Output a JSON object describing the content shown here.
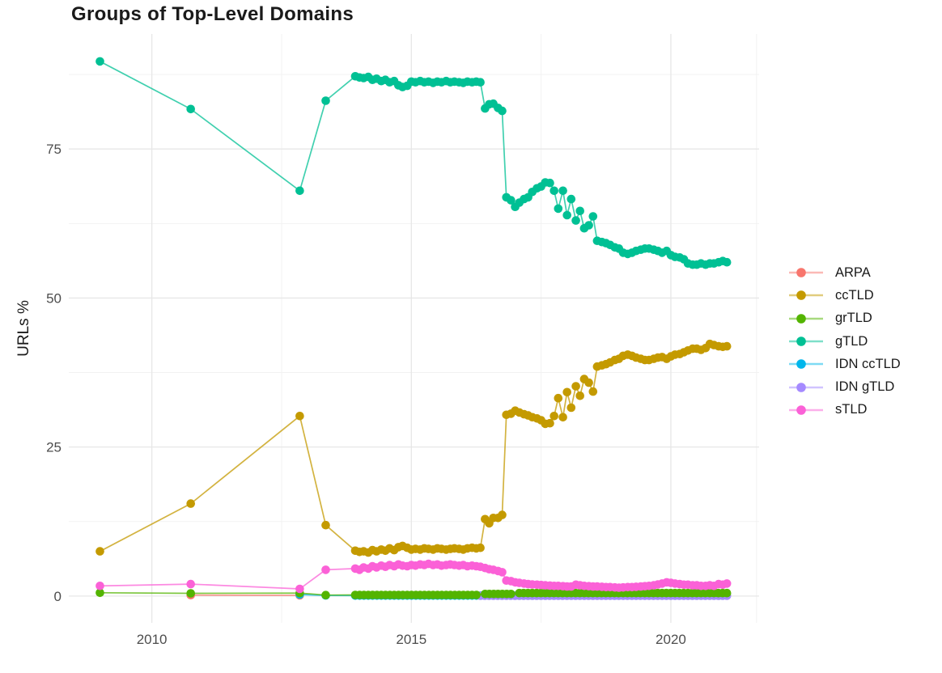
{
  "chart_data": {
    "type": "line",
    "title": "Groups of Top-Level Domains",
    "xlabel": "",
    "ylabel": "URLs %",
    "legend_position": "right",
    "grid": true,
    "marker": "point",
    "xlim": [
      2008.4,
      2021.7
    ],
    "ylim": [
      -4.5,
      94.3
    ],
    "x_ticks": [
      2010,
      2015,
      2020
    ],
    "x_minor_ticks": [
      2012.5,
      2017.5,
      2021.65
    ],
    "y_ticks": [
      0,
      25,
      50,
      75
    ],
    "y_minor_ticks": [
      12.5,
      37.5,
      62.5,
      87.5
    ],
    "axis_text_color": "#4d4d4d",
    "grid_major_color": "#e7e7e7",
    "grid_minor_color": "#f2f2f2",
    "series": [
      {
        "name": "ARPA",
        "color": "#F8766D",
        "points": [
          [
            2010.75,
            0.15
          ],
          [
            2012.85,
            0.12
          ]
        ],
        "flat_runs": []
      },
      {
        "name": "ccTLD",
        "color": "#C49A00",
        "points": [
          [
            2009.0,
            7.5
          ],
          [
            2010.75,
            15.5
          ],
          [
            2012.85,
            30.2
          ],
          [
            2013.35,
            11.9
          ],
          [
            2013.92,
            7.6
          ],
          [
            2014.0,
            7.4
          ],
          [
            2014.08,
            7.5
          ],
          [
            2014.17,
            7.3
          ],
          [
            2014.25,
            7.7
          ],
          [
            2014.33,
            7.5
          ],
          [
            2014.42,
            7.8
          ],
          [
            2014.5,
            7.6
          ],
          [
            2014.58,
            8.0
          ],
          [
            2014.67,
            7.7
          ],
          [
            2014.75,
            8.2
          ],
          [
            2014.83,
            8.4
          ],
          [
            2014.92,
            8.1
          ],
          [
            2015.0,
            7.8
          ],
          [
            2015.08,
            7.9
          ],
          [
            2015.17,
            7.8
          ],
          [
            2015.25,
            8.0
          ],
          [
            2015.33,
            7.9
          ],
          [
            2015.42,
            7.8
          ],
          [
            2015.5,
            8.0
          ],
          [
            2015.58,
            7.9
          ],
          [
            2015.67,
            7.8
          ],
          [
            2015.75,
            7.9
          ],
          [
            2015.83,
            8.0
          ],
          [
            2015.92,
            7.9
          ],
          [
            2016.0,
            7.8
          ],
          [
            2016.08,
            8.0
          ],
          [
            2016.17,
            8.1
          ],
          [
            2016.25,
            8.0
          ],
          [
            2016.33,
            8.1
          ],
          [
            2016.42,
            12.9
          ],
          [
            2016.5,
            12.2
          ],
          [
            2016.58,
            13.1
          ],
          [
            2016.67,
            13.1
          ],
          [
            2016.75,
            13.6
          ],
          [
            2016.83,
            30.4
          ],
          [
            2016.92,
            30.6
          ],
          [
            2017.0,
            31.1
          ],
          [
            2017.08,
            30.8
          ],
          [
            2017.17,
            30.5
          ],
          [
            2017.25,
            30.3
          ],
          [
            2017.33,
            30.0
          ],
          [
            2017.42,
            29.8
          ],
          [
            2017.5,
            29.5
          ],
          [
            2017.58,
            28.9
          ],
          [
            2017.67,
            29.0
          ],
          [
            2017.75,
            30.2
          ],
          [
            2017.83,
            33.2
          ],
          [
            2017.92,
            30.0
          ],
          [
            2018.0,
            34.2
          ],
          [
            2018.08,
            31.6
          ],
          [
            2018.17,
            35.2
          ],
          [
            2018.25,
            33.6
          ],
          [
            2018.33,
            36.4
          ],
          [
            2018.42,
            35.8
          ],
          [
            2018.5,
            34.3
          ],
          [
            2018.58,
            38.5
          ],
          [
            2018.67,
            38.7
          ],
          [
            2018.75,
            38.9
          ],
          [
            2018.83,
            39.2
          ],
          [
            2018.92,
            39.6
          ],
          [
            2019.0,
            39.8
          ],
          [
            2019.08,
            40.3
          ],
          [
            2019.17,
            40.5
          ],
          [
            2019.25,
            40.3
          ],
          [
            2019.33,
            40.0
          ],
          [
            2019.42,
            39.8
          ],
          [
            2019.5,
            39.6
          ],
          [
            2019.58,
            39.6
          ],
          [
            2019.67,
            39.8
          ],
          [
            2019.75,
            40.0
          ],
          [
            2019.83,
            40.1
          ],
          [
            2019.92,
            39.8
          ],
          [
            2020.0,
            40.2
          ],
          [
            2020.08,
            40.5
          ],
          [
            2020.17,
            40.6
          ],
          [
            2020.25,
            40.9
          ],
          [
            2020.33,
            41.2
          ],
          [
            2020.42,
            41.5
          ],
          [
            2020.5,
            41.5
          ],
          [
            2020.58,
            41.3
          ],
          [
            2020.67,
            41.6
          ],
          [
            2020.75,
            42.3
          ],
          [
            2020.83,
            42.1
          ],
          [
            2020.92,
            41.9
          ],
          [
            2021.0,
            41.8
          ],
          [
            2021.08,
            41.9
          ]
        ],
        "flat_runs": []
      },
      {
        "name": "grTLD",
        "color": "#53B400",
        "points": [
          [
            2009.0,
            0.55
          ],
          [
            2010.75,
            0.45
          ],
          [
            2012.85,
            0.5
          ],
          [
            2013.35,
            0.15
          ]
        ],
        "flat_runs": [
          {
            "from": 2013.92,
            "to": 2016.33,
            "value": 0.18
          },
          {
            "from": 2016.42,
            "to": 2017.0,
            "value": 0.35
          },
          {
            "from": 2017.08,
            "to": 2021.08,
            "value": 0.5
          }
        ]
      },
      {
        "name": "gTLD",
        "color": "#00C094",
        "points": [
          [
            2009.0,
            89.7
          ],
          [
            2010.75,
            81.7
          ],
          [
            2012.85,
            68.0
          ],
          [
            2013.35,
            83.1
          ],
          [
            2013.92,
            87.2
          ],
          [
            2014.0,
            87.0
          ],
          [
            2014.08,
            86.9
          ],
          [
            2014.17,
            87.1
          ],
          [
            2014.25,
            86.6
          ],
          [
            2014.33,
            86.8
          ],
          [
            2014.42,
            86.4
          ],
          [
            2014.5,
            86.6
          ],
          [
            2014.58,
            86.2
          ],
          [
            2014.67,
            86.4
          ],
          [
            2014.75,
            85.7
          ],
          [
            2014.83,
            85.4
          ],
          [
            2014.92,
            85.6
          ],
          [
            2015.0,
            86.3
          ],
          [
            2015.08,
            86.2
          ],
          [
            2015.17,
            86.4
          ],
          [
            2015.25,
            86.2
          ],
          [
            2015.33,
            86.3
          ],
          [
            2015.42,
            86.1
          ],
          [
            2015.5,
            86.3
          ],
          [
            2015.58,
            86.2
          ],
          [
            2015.67,
            86.4
          ],
          [
            2015.75,
            86.2
          ],
          [
            2015.83,
            86.3
          ],
          [
            2015.92,
            86.2
          ],
          [
            2016.0,
            86.1
          ],
          [
            2016.08,
            86.3
          ],
          [
            2016.17,
            86.2
          ],
          [
            2016.25,
            86.3
          ],
          [
            2016.33,
            86.2
          ],
          [
            2016.42,
            81.8
          ],
          [
            2016.5,
            82.5
          ],
          [
            2016.58,
            82.6
          ],
          [
            2016.67,
            81.9
          ],
          [
            2016.75,
            81.4
          ],
          [
            2016.83,
            66.9
          ],
          [
            2016.92,
            66.4
          ],
          [
            2017.0,
            65.3
          ],
          [
            2017.08,
            66.0
          ],
          [
            2017.17,
            66.6
          ],
          [
            2017.25,
            66.9
          ],
          [
            2017.33,
            67.8
          ],
          [
            2017.42,
            68.4
          ],
          [
            2017.5,
            68.7
          ],
          [
            2017.58,
            69.4
          ],
          [
            2017.67,
            69.3
          ],
          [
            2017.75,
            68.0
          ],
          [
            2017.83,
            65.0
          ],
          [
            2017.92,
            68.0
          ],
          [
            2018.0,
            63.9
          ],
          [
            2018.08,
            66.6
          ],
          [
            2018.17,
            63.0
          ],
          [
            2018.25,
            64.6
          ],
          [
            2018.33,
            61.7
          ],
          [
            2018.42,
            62.2
          ],
          [
            2018.5,
            63.7
          ],
          [
            2018.58,
            59.6
          ],
          [
            2018.67,
            59.4
          ],
          [
            2018.75,
            59.2
          ],
          [
            2018.83,
            58.9
          ],
          [
            2018.92,
            58.5
          ],
          [
            2019.0,
            58.3
          ],
          [
            2019.08,
            57.6
          ],
          [
            2019.17,
            57.4
          ],
          [
            2019.25,
            57.6
          ],
          [
            2019.33,
            57.9
          ],
          [
            2019.42,
            58.1
          ],
          [
            2019.5,
            58.3
          ],
          [
            2019.58,
            58.3
          ],
          [
            2019.67,
            58.1
          ],
          [
            2019.75,
            57.9
          ],
          [
            2019.83,
            57.6
          ],
          [
            2019.92,
            57.9
          ],
          [
            2020.0,
            57.2
          ],
          [
            2020.08,
            56.9
          ],
          [
            2020.17,
            56.8
          ],
          [
            2020.25,
            56.5
          ],
          [
            2020.33,
            55.8
          ],
          [
            2020.42,
            55.6
          ],
          [
            2020.5,
            55.6
          ],
          [
            2020.58,
            55.8
          ],
          [
            2020.67,
            55.6
          ],
          [
            2020.75,
            55.8
          ],
          [
            2020.83,
            55.8
          ],
          [
            2020.92,
            56.0
          ],
          [
            2021.0,
            56.2
          ],
          [
            2021.08,
            56.0
          ]
        ],
        "flat_runs": []
      },
      {
        "name": "IDN ccTLD",
        "color": "#00B6EB",
        "points": [
          [
            2012.85,
            0.25
          ],
          [
            2013.35,
            0.1
          ]
        ],
        "flat_runs": [
          {
            "from": 2013.92,
            "to": 2021.08,
            "value": 0.08
          }
        ]
      },
      {
        "name": "IDN gTLD",
        "color": "#A58AFF",
        "points": [],
        "flat_runs": [
          {
            "from": 2016.33,
            "to": 2021.08,
            "value": 0.05
          }
        ]
      },
      {
        "name": "sTLD",
        "color": "#FB61D7",
        "points": [
          [
            2009.0,
            1.7
          ],
          [
            2010.75,
            2.0
          ],
          [
            2012.85,
            1.2
          ],
          [
            2013.35,
            4.4
          ],
          [
            2013.92,
            4.6
          ],
          [
            2014.0,
            4.4
          ],
          [
            2014.08,
            4.8
          ],
          [
            2014.17,
            4.6
          ],
          [
            2014.25,
            5.0
          ],
          [
            2014.33,
            4.8
          ],
          [
            2014.42,
            5.1
          ],
          [
            2014.5,
            4.9
          ],
          [
            2014.58,
            5.2
          ],
          [
            2014.67,
            5.0
          ],
          [
            2014.75,
            5.3
          ],
          [
            2014.83,
            5.1
          ],
          [
            2014.92,
            5.0
          ],
          [
            2015.0,
            5.2
          ],
          [
            2015.08,
            5.1
          ],
          [
            2015.17,
            5.3
          ],
          [
            2015.25,
            5.2
          ],
          [
            2015.33,
            5.4
          ],
          [
            2015.42,
            5.2
          ],
          [
            2015.5,
            5.3
          ],
          [
            2015.58,
            5.1
          ],
          [
            2015.67,
            5.2
          ],
          [
            2015.75,
            5.3
          ],
          [
            2015.83,
            5.2
          ],
          [
            2015.92,
            5.1
          ],
          [
            2016.0,
            5.2
          ],
          [
            2016.08,
            5.0
          ],
          [
            2016.17,
            5.1
          ],
          [
            2016.25,
            5.0
          ],
          [
            2016.33,
            4.9
          ],
          [
            2016.42,
            4.7
          ],
          [
            2016.5,
            4.5
          ],
          [
            2016.58,
            4.4
          ],
          [
            2016.67,
            4.2
          ],
          [
            2016.75,
            4.0
          ],
          [
            2016.83,
            2.6
          ],
          [
            2016.92,
            2.5
          ],
          [
            2017.0,
            2.3
          ],
          [
            2017.08,
            2.2
          ],
          [
            2017.17,
            2.1
          ],
          [
            2017.25,
            2.0
          ],
          [
            2017.33,
            1.95
          ],
          [
            2017.42,
            1.9
          ],
          [
            2017.5,
            1.85
          ],
          [
            2017.58,
            1.8
          ],
          [
            2017.67,
            1.75
          ],
          [
            2017.75,
            1.7
          ],
          [
            2017.83,
            1.7
          ],
          [
            2017.92,
            1.65
          ],
          [
            2018.0,
            1.6
          ],
          [
            2018.08,
            1.6
          ],
          [
            2018.17,
            1.9
          ],
          [
            2018.25,
            1.8
          ],
          [
            2018.33,
            1.7
          ],
          [
            2018.42,
            1.65
          ],
          [
            2018.5,
            1.6
          ],
          [
            2018.58,
            1.6
          ],
          [
            2018.67,
            1.55
          ],
          [
            2018.75,
            1.5
          ],
          [
            2018.83,
            1.5
          ],
          [
            2018.92,
            1.45
          ],
          [
            2019.0,
            1.4
          ],
          [
            2019.08,
            1.45
          ],
          [
            2019.17,
            1.5
          ],
          [
            2019.25,
            1.5
          ],
          [
            2019.33,
            1.55
          ],
          [
            2019.42,
            1.6
          ],
          [
            2019.5,
            1.65
          ],
          [
            2019.58,
            1.7
          ],
          [
            2019.67,
            1.8
          ],
          [
            2019.75,
            1.95
          ],
          [
            2019.83,
            2.1
          ],
          [
            2019.92,
            2.3
          ],
          [
            2020.0,
            2.2
          ],
          [
            2020.08,
            2.1
          ],
          [
            2020.17,
            2.0
          ],
          [
            2020.25,
            1.9
          ],
          [
            2020.33,
            1.9
          ],
          [
            2020.42,
            1.8
          ],
          [
            2020.5,
            1.8
          ],
          [
            2020.58,
            1.7
          ],
          [
            2020.67,
            1.7
          ],
          [
            2020.75,
            1.8
          ],
          [
            2020.83,
            1.7
          ],
          [
            2020.92,
            2.0
          ],
          [
            2021.0,
            1.9
          ],
          [
            2021.08,
            2.1
          ]
        ],
        "flat_runs": []
      }
    ]
  }
}
